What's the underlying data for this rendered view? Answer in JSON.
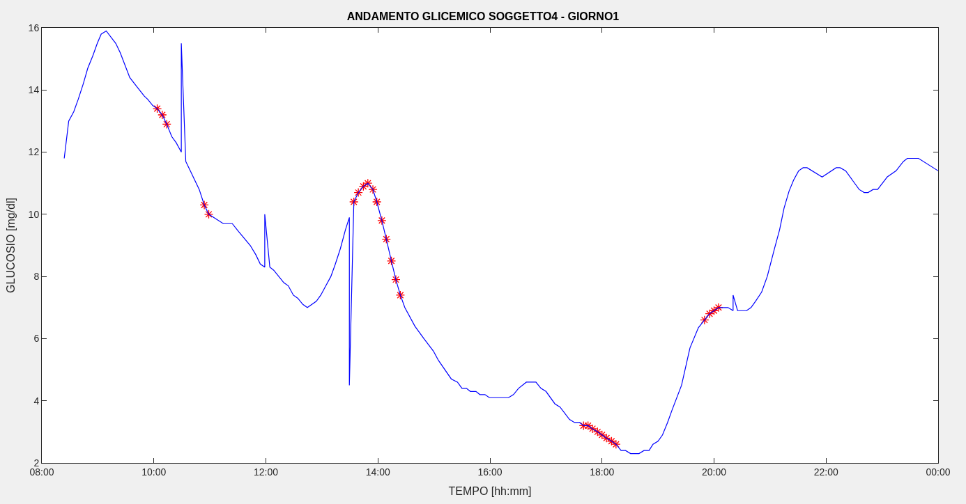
{
  "chart_data": {
    "type": "line",
    "title": "ANDAMENTO GLICEMICO SOGGETTO4 - GIORNO1",
    "xlabel": "TEMPO [hh:mm]",
    "ylabel": "GLUCOSIO [mg/dl]",
    "xlim": [
      8,
      24
    ],
    "xticks": [
      {
        "value": 8,
        "label": "08:00"
      },
      {
        "value": 10,
        "label": "10:00"
      },
      {
        "value": 12,
        "label": "12:00"
      },
      {
        "value": 14,
        "label": "14:00"
      },
      {
        "value": 16,
        "label": "16:00"
      },
      {
        "value": 18,
        "label": "18:00"
      },
      {
        "value": 20,
        "label": "20:00"
      },
      {
        "value": 22,
        "label": "22:00"
      },
      {
        "value": 24,
        "label": "00:00"
      }
    ],
    "ylim": [
      2,
      16
    ],
    "yticks": [
      2,
      4,
      6,
      8,
      10,
      12,
      14,
      16
    ],
    "grid": false,
    "series": [
      {
        "color": "#0000ff",
        "marker": "none",
        "line_style": "solid",
        "x": [
          8.4,
          8.48,
          8.57,
          8.65,
          8.74,
          8.82,
          8.91,
          8.99,
          9.06,
          9.15,
          9.32,
          9.4,
          9.57,
          9.7,
          9.83,
          9.89,
          9.98,
          10.06,
          10.15,
          10.23,
          10.32,
          10.4,
          10.49,
          10.49,
          10.57,
          10.65,
          10.81,
          10.9,
          10.98,
          11.24,
          11.4,
          11.51,
          11.72,
          11.82,
          11.9,
          11.98,
          11.98,
          12.07,
          12.14,
          12.32,
          12.4,
          12.49,
          12.57,
          12.66,
          12.74,
          12.9,
          12.98,
          13.07,
          13.16,
          13.24,
          13.33,
          13.42,
          13.49,
          13.49,
          13.57,
          13.65,
          13.74,
          13.82,
          13.91,
          13.98,
          14.07,
          14.15,
          14.24,
          14.32,
          14.4,
          14.48,
          14.66,
          14.82,
          14.99,
          15.08,
          15.31,
          15.42,
          15.5,
          15.58,
          15.65,
          15.75,
          15.82,
          15.91,
          15.99,
          16.33,
          16.42,
          16.51,
          16.65,
          16.82,
          16.91,
          17.0,
          17.16,
          17.25,
          17.42,
          17.51,
          17.6,
          17.67,
          17.75,
          17.83,
          17.92,
          18.0,
          18.08,
          18.17,
          18.25,
          18.34,
          18.42,
          18.51,
          18.66,
          18.75,
          18.84,
          18.91,
          19.0,
          19.08,
          19.17,
          19.25,
          19.42,
          19.57,
          19.72,
          19.83,
          19.92,
          20.0,
          20.08,
          20.25,
          20.34,
          20.34,
          20.42,
          20.58,
          20.66,
          20.74,
          20.85,
          20.95,
          21.08,
          21.17,
          21.25,
          21.34,
          21.42,
          21.51,
          21.59,
          21.66,
          21.93,
          22.18,
          22.25,
          22.35,
          22.49,
          22.59,
          22.68,
          22.75,
          22.84,
          22.92,
          23.09,
          23.25,
          23.38,
          23.45,
          23.65,
          24.0
        ],
        "values": [
          11.8,
          13.0,
          13.3,
          13.7,
          14.2,
          14.7,
          15.1,
          15.5,
          15.8,
          15.9,
          15.5,
          15.2,
          14.4,
          14.1,
          13.8,
          13.7,
          13.5,
          13.4,
          13.2,
          12.9,
          12.5,
          12.3,
          12.0,
          15.5,
          11.7,
          11.4,
          10.8,
          10.3,
          10.0,
          9.7,
          9.7,
          9.45,
          9.0,
          8.7,
          8.4,
          8.3,
          10.0,
          8.3,
          8.2,
          7.8,
          7.7,
          7.4,
          7.3,
          7.1,
          7.0,
          7.2,
          7.4,
          7.7,
          8.0,
          8.4,
          8.9,
          9.5,
          9.9,
          4.5,
          10.4,
          10.7,
          10.9,
          11.0,
          10.8,
          10.4,
          9.8,
          9.2,
          8.5,
          7.9,
          7.4,
          7.0,
          6.4,
          6.0,
          5.6,
          5.3,
          4.7,
          4.6,
          4.4,
          4.4,
          4.3,
          4.3,
          4.2,
          4.2,
          4.1,
          4.1,
          4.2,
          4.4,
          4.6,
          4.6,
          4.4,
          4.3,
          3.9,
          3.8,
          3.4,
          3.3,
          3.3,
          3.2,
          3.2,
          3.1,
          3.0,
          2.9,
          2.8,
          2.7,
          2.6,
          2.4,
          2.4,
          2.3,
          2.3,
          2.4,
          2.4,
          2.6,
          2.7,
          2.9,
          3.3,
          3.7,
          4.5,
          5.7,
          6.35,
          6.6,
          6.8,
          6.9,
          7.0,
          7.0,
          6.9,
          7.4,
          6.9,
          6.9,
          7.0,
          7.2,
          7.5,
          8.0,
          8.9,
          9.5,
          10.2,
          10.75,
          11.1,
          11.4,
          11.5,
          11.5,
          11.2,
          11.5,
          11.5,
          11.4,
          11.05,
          10.8,
          10.7,
          10.7,
          10.8,
          10.8,
          11.2,
          11.4,
          11.7,
          11.8,
          11.8,
          11.4
        ]
      },
      {
        "type": "scatter",
        "color": "#ff0000",
        "marker": "cross",
        "x": [
          10.06,
          10.15,
          10.23,
          10.9,
          10.98,
          13.57,
          13.65,
          13.74,
          13.82,
          13.91,
          13.98,
          14.07,
          14.15,
          14.24,
          14.32,
          14.4,
          17.67,
          17.75,
          17.83,
          17.92,
          18.0,
          18.08,
          18.17,
          18.25,
          19.83,
          19.92,
          20.0,
          20.08
        ],
        "values": [
          13.4,
          13.2,
          12.9,
          10.3,
          10.0,
          10.4,
          10.7,
          10.9,
          11.0,
          10.8,
          10.4,
          9.8,
          9.2,
          8.5,
          7.9,
          7.4,
          3.2,
          3.2,
          3.1,
          3.0,
          2.9,
          2.8,
          2.7,
          2.6,
          6.6,
          6.8,
          6.9,
          7.0
        ]
      }
    ]
  }
}
